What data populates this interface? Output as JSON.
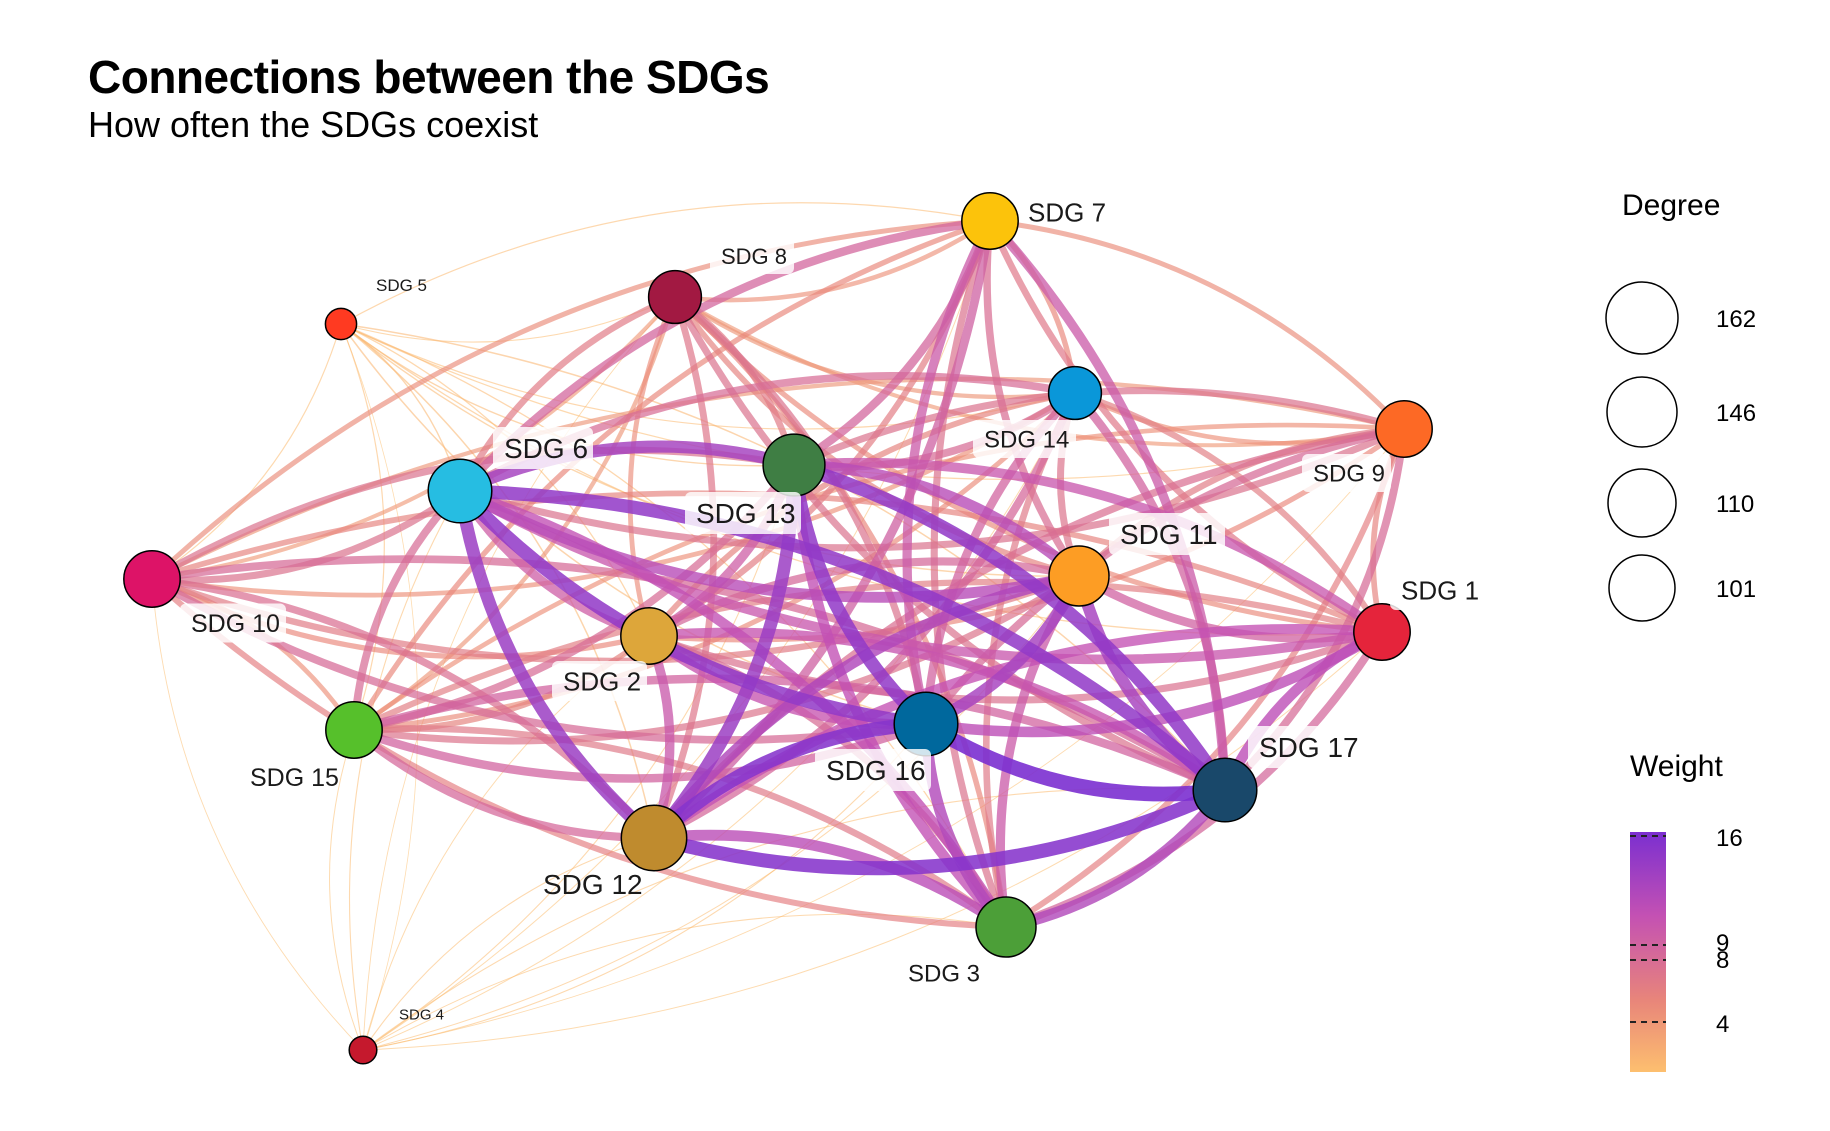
{
  "title": "Connections between the SDGs",
  "subtitle": "How often the SDGs coexist",
  "legend": {
    "degree_title": "Degree",
    "degree_values": [
      "162",
      "146",
      "110",
      "101"
    ],
    "weight_title": "Weight",
    "weight_ticks": [
      "16",
      "9",
      "8",
      "4"
    ],
    "weight_colors": [
      "#fdbf6f",
      "#e8857a",
      "#c451b3",
      "#7b2fd0"
    ]
  },
  "nodes": [
    {
      "id": "sdg7",
      "label": "SDG 7",
      "color": "#fcc30b",
      "degree": 130
    },
    {
      "id": "sdg8",
      "label": "SDG 8",
      "color": "#a21942",
      "degree": 120
    },
    {
      "id": "sdg5",
      "label": "SDG 5",
      "color": "#ff3a21",
      "degree": 60
    },
    {
      "id": "sdg14",
      "label": "SDG 14",
      "color": "#0a97d9",
      "degree": 120
    },
    {
      "id": "sdg9",
      "label": "SDG 9",
      "color": "#fd6925",
      "degree": 130
    },
    {
      "id": "sdg6",
      "label": "SDG 6",
      "color": "#26bde2",
      "degree": 150
    },
    {
      "id": "sdg13",
      "label": "SDG 13",
      "color": "#3f7e44",
      "degree": 145
    },
    {
      "id": "sdg11",
      "label": "SDG 11",
      "color": "#fd9d24",
      "degree": 140
    },
    {
      "id": "sdg10",
      "label": "SDG 10",
      "color": "#dd1367",
      "degree": 130
    },
    {
      "id": "sdg1",
      "label": "SDG 1",
      "color": "#e5243b",
      "degree": 130
    },
    {
      "id": "sdg2",
      "label": "SDG 2",
      "color": "#dda63a",
      "degree": 130
    },
    {
      "id": "sdg15",
      "label": "SDG 15",
      "color": "#56c02b",
      "degree": 130
    },
    {
      "id": "sdg16",
      "label": "SDG 16",
      "color": "#00689d",
      "degree": 150
    },
    {
      "id": "sdg17",
      "label": "SDG 17",
      "color": "#19486a",
      "degree": 150
    },
    {
      "id": "sdg12",
      "label": "SDG 12",
      "color": "#bf8b2e",
      "degree": 155
    },
    {
      "id": "sdg3",
      "label": "SDG 3",
      "color": "#4c9f38",
      "degree": 140
    },
    {
      "id": "sdg4",
      "label": "SDG 4",
      "color": "#c5192d",
      "degree": 50
    }
  ]
}
